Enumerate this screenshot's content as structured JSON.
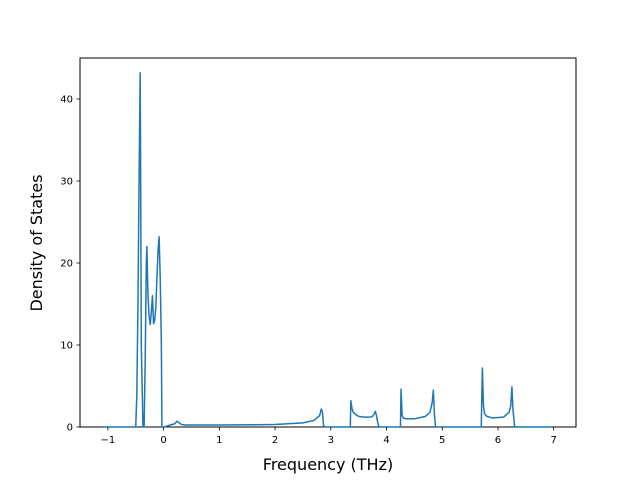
{
  "chart_data": {
    "type": "line",
    "title": "",
    "xlabel": "Frequency (THz)",
    "ylabel": "Density of States",
    "xlim": [
      -1.5,
      7.4
    ],
    "ylim": [
      0,
      45
    ],
    "xticks": [
      -1,
      0,
      1,
      2,
      3,
      4,
      5,
      6,
      7
    ],
    "yticks": [
      0,
      10,
      20,
      30,
      40
    ],
    "grid": false,
    "line_color": "#1f77b4",
    "series": [
      {
        "x": [
          -1.1,
          -0.5,
          -0.48,
          -0.46,
          -0.44,
          -0.42,
          -0.41,
          -0.4,
          -0.37,
          -0.35,
          -0.33,
          -0.31,
          -0.3,
          -0.28,
          -0.26,
          -0.24,
          -0.22,
          -0.2,
          -0.18,
          -0.16,
          -0.14,
          -0.12,
          -0.1,
          -0.08,
          -0.06,
          -0.04,
          -0.03,
          -0.02,
          -0.01,
          0.0,
          0.01,
          0.1,
          0.2,
          0.24,
          0.28,
          0.32,
          0.4,
          1.0,
          2.0,
          2.5,
          2.7,
          2.8,
          2.83,
          2.85,
          2.87,
          2.9,
          3.2,
          3.35,
          3.36,
          3.38,
          3.4,
          3.45,
          3.5,
          3.6,
          3.7,
          3.75,
          3.78,
          3.8,
          3.82,
          3.84,
          3.86,
          3.88,
          4.2,
          4.25,
          4.26,
          4.28,
          4.3,
          4.35,
          4.5,
          4.7,
          4.78,
          4.82,
          4.84,
          4.86,
          4.88,
          5.65,
          5.7,
          5.72,
          5.74,
          5.76,
          5.8,
          5.9,
          6.1,
          6.2,
          6.23,
          6.25,
          6.27,
          6.3,
          6.95
        ],
        "y": [
          0,
          0,
          4,
          15,
          30,
          43.2,
          28,
          10,
          0,
          0,
          8,
          20,
          22,
          16,
          13.5,
          12.5,
          14,
          16,
          12.6,
          13,
          14.5,
          18,
          21.5,
          23.2,
          18,
          10,
          0,
          0,
          0,
          0,
          0,
          0.2,
          0.4,
          0.7,
          0.5,
          0.3,
          0.25,
          0.25,
          0.3,
          0.5,
          0.8,
          1.4,
          2.2,
          1.8,
          0.2,
          0,
          0,
          0,
          3.2,
          2.3,
          1.8,
          1.5,
          1.3,
          1.2,
          1.2,
          1.3,
          1.6,
          1.9,
          1.4,
          0.6,
          0.1,
          0,
          0,
          0,
          4.6,
          1.4,
          1.1,
          1.0,
          1.0,
          1.3,
          1.8,
          3.0,
          4.5,
          1.5,
          0,
          0,
          0,
          7.2,
          2.5,
          1.6,
          1.3,
          1.1,
          1.2,
          1.8,
          2.6,
          4.9,
          2.0,
          0,
          0
        ]
      }
    ]
  }
}
